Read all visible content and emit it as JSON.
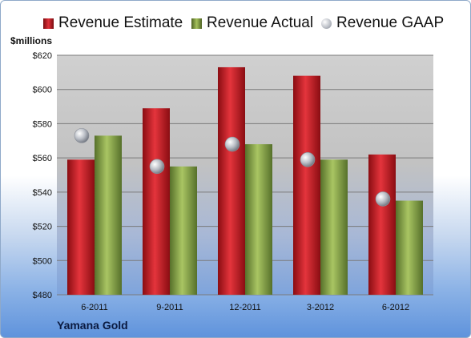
{
  "chart_data": {
    "type": "bar",
    "units_label": "$millions",
    "company": "Yamana Gold",
    "categories": [
      "6-2011",
      "9-2011",
      "12-2011",
      "3-2012",
      "6-2012"
    ],
    "series": [
      {
        "name": "Revenue Estimate",
        "type": "bar",
        "color": "#c8161d",
        "values": [
          559,
          589,
          613,
          608,
          562
        ]
      },
      {
        "name": "Revenue Actual",
        "type": "bar",
        "color": "#7d9a3a",
        "values": [
          573,
          555,
          568,
          559,
          535
        ]
      },
      {
        "name": "Revenue GAAP",
        "type": "marker",
        "color": "#c0c4cc",
        "values": [
          573,
          555,
          568,
          559,
          536
        ]
      }
    ],
    "ylim": [
      480,
      620
    ],
    "yticks": [
      480,
      500,
      520,
      540,
      560,
      580,
      600,
      620
    ],
    "ytick_labels": [
      "$480",
      "$500",
      "$520",
      "$540",
      "$560",
      "$580",
      "$600",
      "$620"
    ],
    "legend_position": "top",
    "grid": true
  }
}
